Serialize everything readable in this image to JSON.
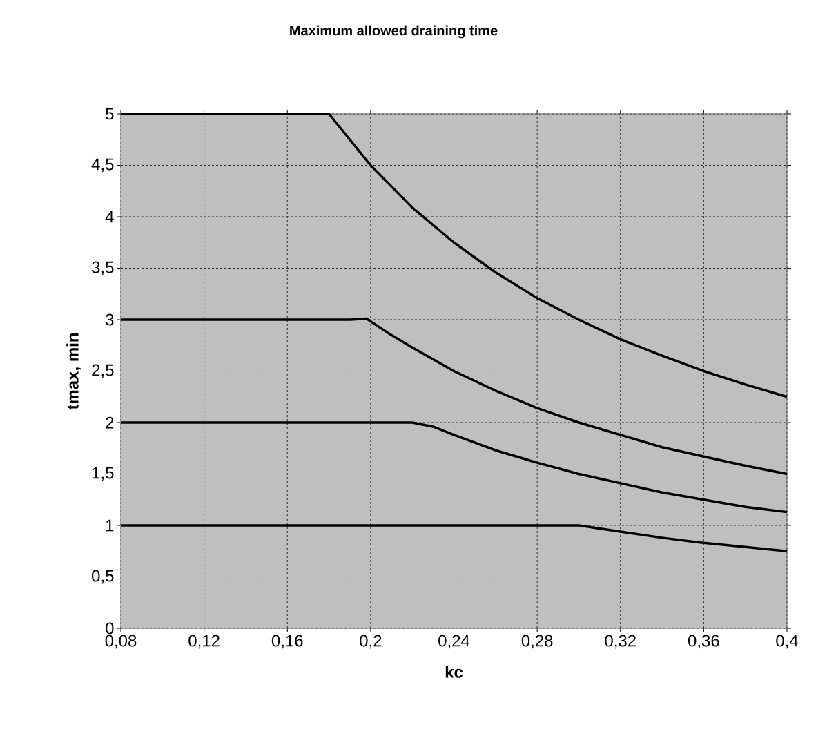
{
  "chart_data": {
    "type": "line",
    "title": "Maximum allowed draining time",
    "xlabel": "kc",
    "ylabel": "tmax, min",
    "xlim": [
      0.08,
      0.4
    ],
    "ylim": [
      0,
      5
    ],
    "xticks": [
      {
        "value": 0.08,
        "label": "0,08"
      },
      {
        "value": 0.12,
        "label": "0,12"
      },
      {
        "value": 0.16,
        "label": "0,16"
      },
      {
        "value": 0.2,
        "label": "0,2"
      },
      {
        "value": 0.24,
        "label": "0,24"
      },
      {
        "value": 0.28,
        "label": "0,28"
      },
      {
        "value": 0.32,
        "label": "0,32"
      },
      {
        "value": 0.36,
        "label": "0,36"
      },
      {
        "value": 0.4,
        "label": "0,4"
      }
    ],
    "yticks": [
      0,
      {
        "value": 0.5,
        "label": "0,5"
      },
      1,
      {
        "value": 1.5,
        "label": "1,5"
      },
      2,
      {
        "value": 2.5,
        "label": "2,5"
      },
      3,
      {
        "value": 3.5,
        "label": "3,5"
      },
      4,
      {
        "value": 4.5,
        "label": "4,5"
      },
      5
    ],
    "grid": true,
    "series": [
      {
        "color": "#000000",
        "x": [
          0.08,
          0.18,
          0.2,
          0.22,
          0.24,
          0.26,
          0.28,
          0.3,
          0.32,
          0.34,
          0.36,
          0.38,
          0.4
        ],
        "values": [
          5,
          5,
          4.5,
          4.09,
          3.75,
          3.46,
          3.21,
          3.0,
          2.81,
          2.65,
          2.5,
          2.37,
          2.25
        ]
      },
      {
        "color": "#000000",
        "x": [
          0.08,
          0.19,
          0.198,
          0.21,
          0.22,
          0.24,
          0.26,
          0.28,
          0.3,
          0.32,
          0.34,
          0.36,
          0.38,
          0.4
        ],
        "values": [
          3,
          3,
          3.01,
          2.85,
          2.73,
          2.5,
          2.31,
          2.14,
          2.0,
          1.88,
          1.76,
          1.67,
          1.58,
          1.5
        ]
      },
      {
        "color": "#000000",
        "x": [
          0.08,
          0.215,
          0.22,
          0.23,
          0.24,
          0.26,
          0.28,
          0.3,
          0.32,
          0.34,
          0.36,
          0.38,
          0.4
        ],
        "values": [
          2,
          2,
          2,
          1.96,
          1.88,
          1.73,
          1.61,
          1.5,
          1.41,
          1.32,
          1.25,
          1.18,
          1.13
        ]
      },
      {
        "color": "#000000",
        "x": [
          0.08,
          0.295,
          0.3,
          0.32,
          0.34,
          0.36,
          0.38,
          0.4
        ],
        "values": [
          1,
          1,
          1,
          0.94,
          0.88,
          0.83,
          0.79,
          0.75
        ]
      }
    ]
  }
}
